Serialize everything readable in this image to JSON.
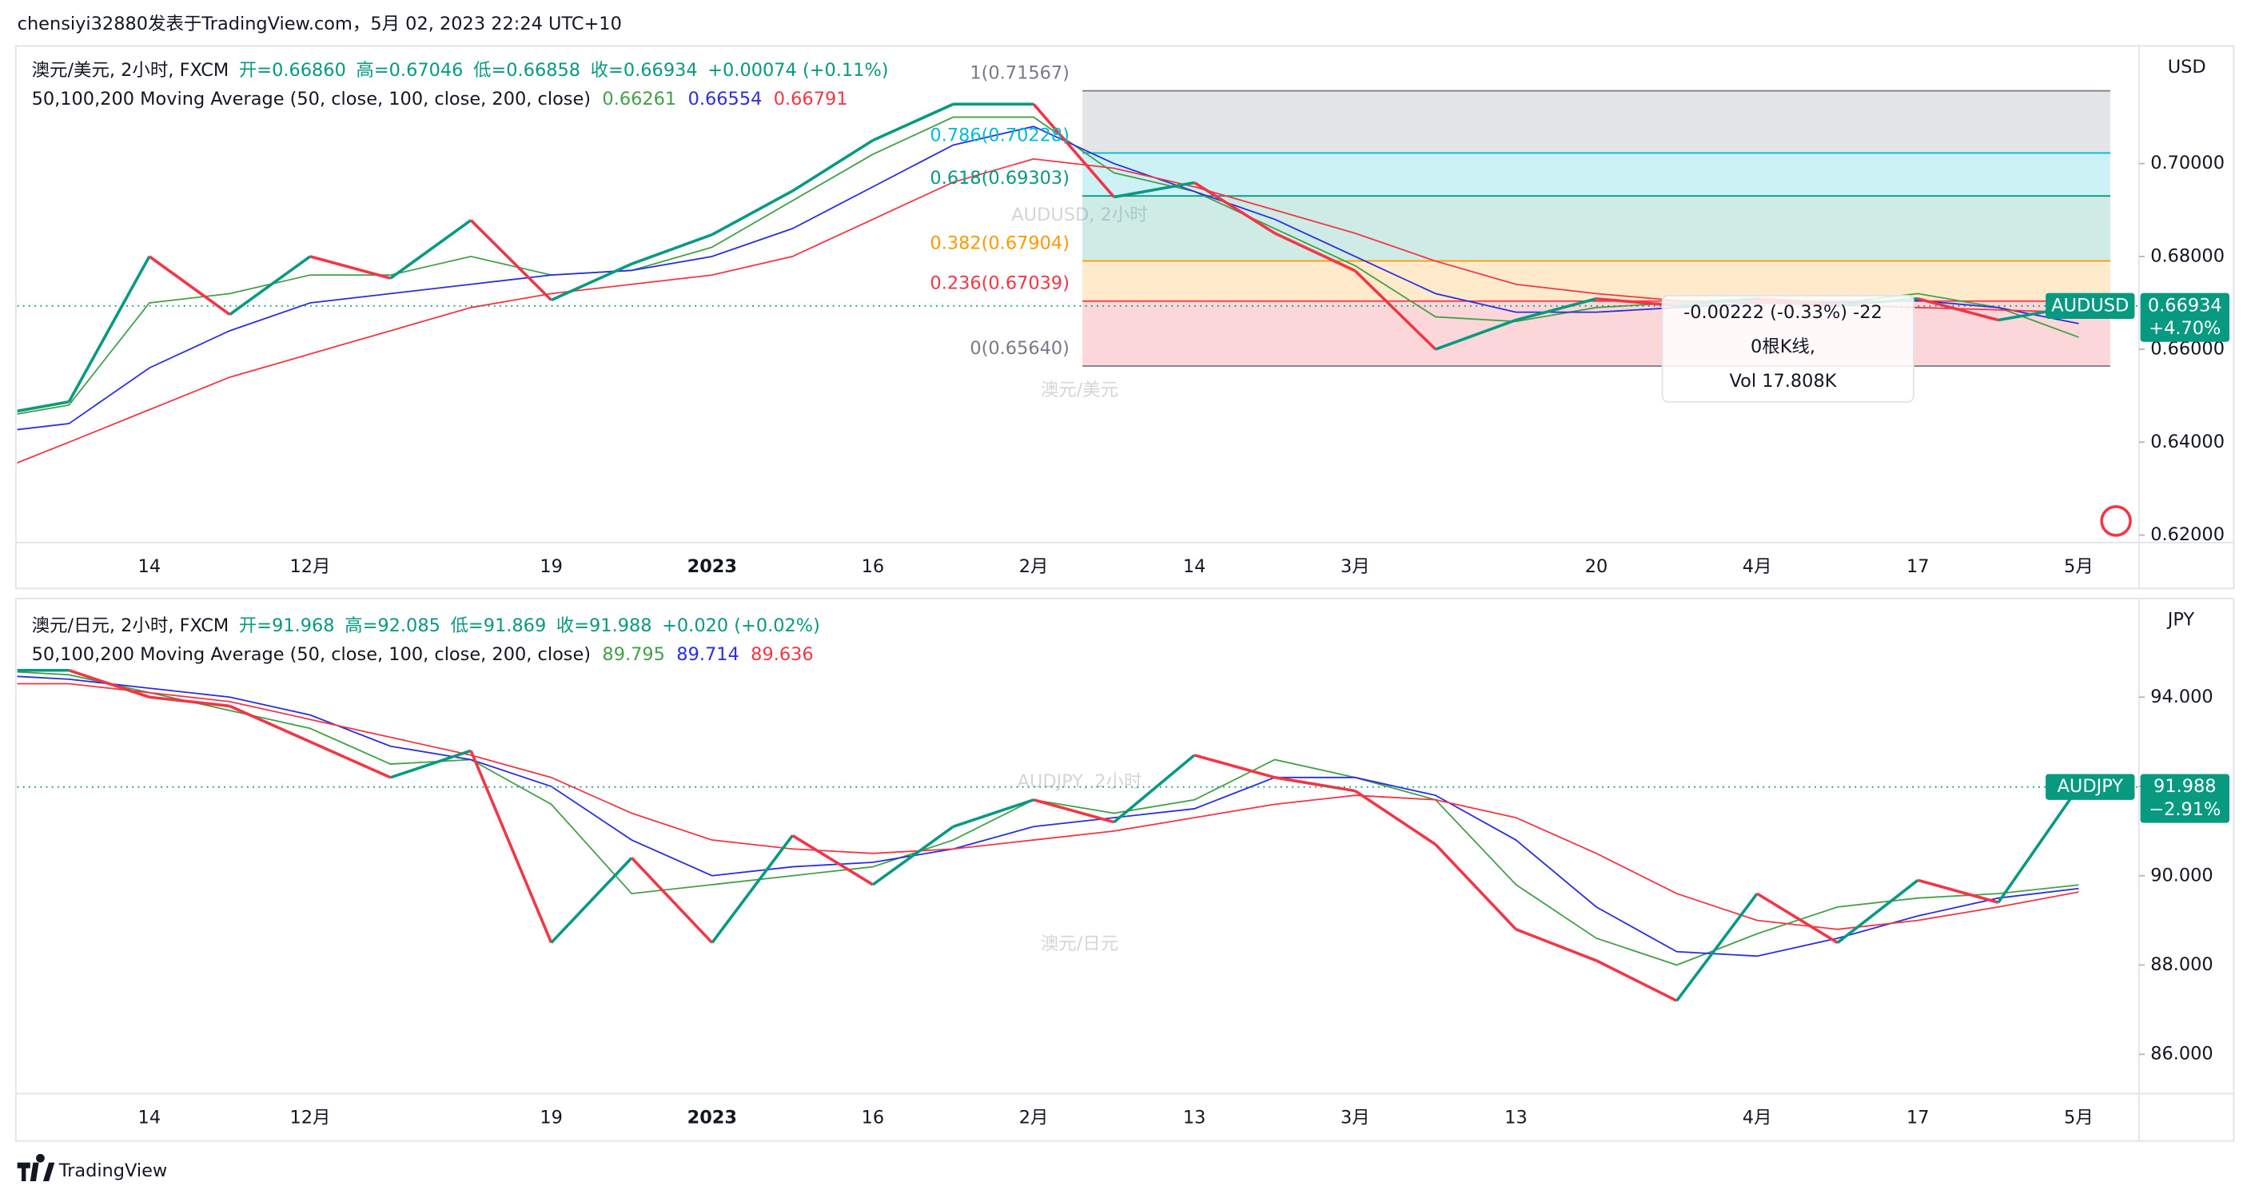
{
  "header": "chensiyi32880发表于TradingView.com，5月 02, 2023 22:24 UTC+10",
  "footer": "TradingView",
  "chart_data": [
    {
      "type": "line",
      "title": "澳元/美元, 2小时, FXCM",
      "ohlc": [
        "开=0.66860",
        "高=0.67046",
        "低=0.66858",
        "收=0.66934",
        "+0.00074 (+0.11%)"
      ],
      "indicator": "50,100,200 Moving Average (50, close, 100, close, 200, close)",
      "watermark": "AUDUSD, 2小时",
      "watermark_sub": "澳元/美元",
      "y_label": "USD",
      "symbol": "AUDUSD",
      "change": "+4.70%",
      "categories": [
        null,
        null,
        "14",
        null,
        "12月",
        null,
        null,
        "19",
        null,
        "2023",
        null,
        "16",
        null,
        "2月",
        null,
        "14",
        null,
        "3月",
        null,
        null,
        "20",
        null,
        "4月",
        null,
        "17",
        null,
        "5月"
      ],
      "series": [
        {
          "name": "AUDUSD",
          "color": "#089981",
          "down_color": "#f23645",
          "values": [
            0.6456,
            0.6487,
            0.68,
            0.6675,
            0.68,
            0.6753,
            0.6878,
            0.6706,
            0.6784,
            0.6847,
            0.6941,
            0.705,
            0.7128,
            0.7128,
            0.6928,
            0.6959,
            0.685,
            0.6769,
            0.66,
            0.6663,
            0.6709,
            0.6694,
            0.6709,
            0.6694,
            0.6709,
            0.6663,
            0.66934
          ]
        },
        {
          "color": "#43a047",
          "values": [
            0.645,
            0.648,
            0.67,
            0.672,
            0.676,
            0.676,
            0.68,
            0.676,
            0.677,
            0.682,
            0.692,
            0.702,
            0.71,
            0.71,
            0.698,
            0.694,
            0.686,
            0.678,
            0.667,
            0.666,
            0.669,
            0.67,
            0.671,
            0.67,
            0.672,
            0.669,
            0.66261
          ]
        },
        {
          "color": "#2a2ee0",
          "values": [
            0.642,
            0.644,
            0.656,
            0.664,
            0.67,
            0.672,
            0.674,
            0.676,
            0.677,
            0.68,
            0.686,
            0.695,
            0.704,
            0.708,
            0.7,
            0.694,
            0.688,
            0.68,
            0.672,
            0.668,
            0.668,
            0.669,
            0.67,
            0.67,
            0.6705,
            0.669,
            0.66554
          ]
        },
        {
          "color": "#f23645",
          "values": [
            0.6331,
            0.64,
            0.647,
            0.654,
            0.659,
            0.664,
            0.669,
            0.672,
            0.674,
            0.676,
            0.68,
            0.688,
            0.696,
            0.701,
            0.699,
            0.695,
            0.69,
            0.685,
            0.679,
            0.674,
            0.672,
            0.6705,
            0.67,
            0.6695,
            0.669,
            0.6685,
            0.66791
          ]
        }
      ],
      "ylim": [
        0.6184,
        0.7241
      ],
      "yticks": [
        {
          "value": 0.62,
          "label": "0.62000"
        },
        {
          "value": 0.64,
          "label": "0.64000"
        },
        {
          "value": 0.66,
          "label": "0.66000"
        },
        {
          "value": 0.68,
          "label": "0.68000"
        },
        {
          "value": 0.7,
          "label": "0.70000"
        }
      ],
      "fib": [
        {
          "value": 0.71567,
          "label": "1(0.71567)",
          "color": "#787b86"
        },
        {
          "value": 0.70228,
          "label": "0.786(0.70228)",
          "color": "#00bcd4"
        },
        {
          "value": 0.69303,
          "label": "0.618(0.69303)",
          "color": "#089981"
        },
        {
          "value": 0.67904,
          "label": "0.382(0.67904)",
          "color": "#ff9800"
        },
        {
          "value": 0.67039,
          "label": "0.236(0.67039)",
          "color": "#f23645"
        },
        {
          "value": 0.6564,
          "label": "0(0.65640)",
          "color": "#787b86"
        }
      ],
      "measure": [
        "-0.00222 (-0.33%) -22",
        "0根K线,",
        "Vol 17.808K"
      ]
    },
    {
      "type": "line",
      "title": "澳元/日元, 2小时, FXCM",
      "ohlc": [
        "开=91.968",
        "高=92.085",
        "低=91.869",
        "收=91.988",
        "+0.020 (+0.02%)"
      ],
      "indicator": "50,100,200 Moving Average (50, close, 100, close, 200, close)",
      "watermark": "AUDJPY, 2小时",
      "watermark_sub": "澳元/日元",
      "y_label": "JPY",
      "symbol": "AUDJPY",
      "change": "−2.91%",
      "categories": [
        null,
        null,
        "14",
        null,
        "12月",
        null,
        null,
        "19",
        null,
        "2023",
        null,
        "16",
        null,
        "2月",
        null,
        "13",
        null,
        "3月",
        null,
        "13",
        null,
        null,
        "4月",
        null,
        "17",
        null,
        "5月"
      ],
      "series": [
        {
          "name": "AUDJPY",
          "color": "#089981",
          "down_color": "#f23645",
          "values": [
            94.6,
            94.6,
            94.0,
            93.8,
            93.0,
            92.2,
            92.8,
            88.5,
            90.4,
            88.5,
            90.9,
            89.8,
            91.1,
            91.7,
            91.2,
            92.7,
            92.2,
            91.9,
            90.7,
            88.8,
            88.1,
            87.2,
            89.6,
            88.5,
            89.9,
            89.4,
            91.988
          ]
        },
        {
          "color": "#43a047",
          "values": [
            94.6,
            94.5,
            94.1,
            93.7,
            93.3,
            92.5,
            92.6,
            91.6,
            89.6,
            89.8,
            90.0,
            90.2,
            90.8,
            91.7,
            91.4,
            91.7,
            92.6,
            92.2,
            91.7,
            89.8,
            88.6,
            88.0,
            88.7,
            89.3,
            89.5,
            89.6,
            89.795
          ]
        },
        {
          "color": "#2a2ee0",
          "values": [
            94.5,
            94.4,
            94.2,
            94.0,
            93.6,
            92.9,
            92.6,
            92.0,
            90.8,
            90.0,
            90.2,
            90.3,
            90.6,
            91.1,
            91.3,
            91.5,
            92.2,
            92.2,
            91.8,
            90.8,
            89.3,
            88.3,
            88.2,
            88.6,
            89.1,
            89.5,
            89.714
          ]
        },
        {
          "color": "#f23645",
          "values": [
            94.3,
            94.3,
            94.1,
            93.9,
            93.5,
            93.1,
            92.7,
            92.2,
            91.4,
            90.8,
            90.6,
            90.5,
            90.6,
            90.8,
            91.0,
            91.3,
            91.6,
            91.8,
            91.7,
            91.3,
            90.5,
            89.6,
            89.0,
            88.8,
            89.0,
            89.3,
            89.636
          ]
        }
      ],
      "ylim": [
        85.12,
        96.08
      ],
      "yticks": [
        {
          "value": 86,
          "label": "86.000"
        },
        {
          "value": 88,
          "label": "88.000"
        },
        {
          "value": 90,
          "label": "90.000"
        },
        {
          "value": 92,
          "label": "92.000"
        },
        {
          "value": 94,
          "label": "94.000"
        }
      ]
    }
  ]
}
